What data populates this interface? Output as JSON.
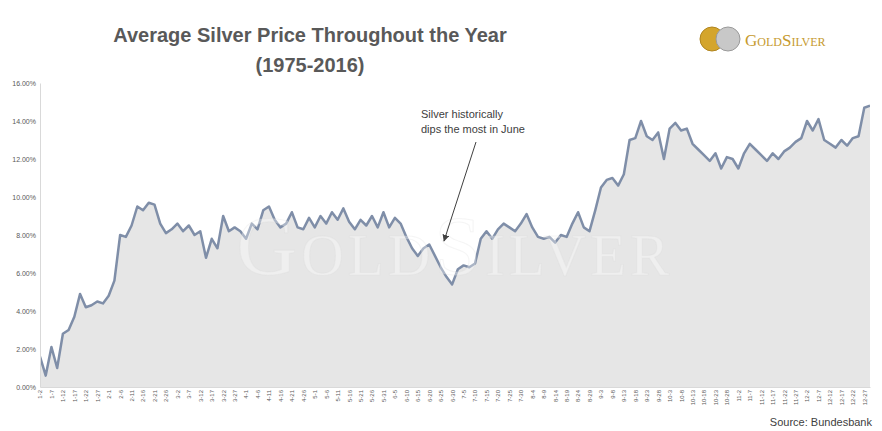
{
  "chart_data": {
    "type": "line",
    "title": "Average Silver Price Throughout the Year",
    "subtitle": "(1975-2016)",
    "annotation": [
      "Silver historically",
      "dips the most in June"
    ],
    "source": "Source: Bundesbank",
    "logo": "GoldSilver",
    "watermark": "GoldSilver",
    "color": "#7f8ea8",
    "grid": false,
    "categories": [
      "1-2",
      null,
      "1-7",
      null,
      "1-12",
      null,
      "1-17",
      null,
      "1-22",
      null,
      "1-27",
      null,
      "2-1",
      null,
      "2-6",
      null,
      "2-11",
      null,
      "2-16",
      null,
      "2-21",
      null,
      "2-26",
      null,
      "3-2",
      null,
      "3-7",
      null,
      "3-12",
      null,
      "3-17",
      null,
      "3-22",
      null,
      "3-27",
      null,
      "4-1",
      null,
      "4-6",
      null,
      "4-11",
      null,
      "4-16",
      null,
      "4-21",
      null,
      "4-26",
      null,
      "5-1",
      null,
      "5-6",
      null,
      "5-11",
      null,
      "5-16",
      null,
      "5-21",
      null,
      "5-26",
      null,
      "5-31",
      null,
      "6-5",
      null,
      "6-10",
      null,
      "6-15",
      null,
      "6-20",
      null,
      "6-25",
      null,
      "6-30",
      null,
      "7-5",
      null,
      "7-10",
      null,
      "7-15",
      null,
      "7-20",
      null,
      "7-25",
      null,
      "7-30",
      null,
      "8-4",
      null,
      "8-9",
      null,
      "8-14",
      null,
      "8-19",
      null,
      "8-24",
      null,
      "8-29",
      null,
      "9-3",
      null,
      "9-8",
      null,
      "9-13",
      null,
      "9-18",
      null,
      "9-23",
      null,
      "9-28",
      null,
      "10-3",
      null,
      "10-8",
      null,
      "10-13",
      null,
      "10-18",
      null,
      "10-23",
      null,
      "10-28",
      null,
      "11-2",
      null,
      "11-7",
      null,
      "11-12",
      null,
      "11-17",
      null,
      "11-22",
      null,
      "11-27",
      null,
      "12-2",
      null,
      "12-7",
      null,
      "12-12",
      null,
      "12-17",
      null,
      "12-22",
      null,
      "12-27",
      null
    ],
    "values": [
      1.6,
      0.6,
      2.1,
      1.0,
      2.8,
      3.0,
      3.7,
      4.9,
      4.2,
      4.3,
      4.5,
      4.4,
      4.8,
      5.6,
      8.0,
      7.9,
      8.5,
      9.5,
      9.3,
      9.7,
      9.6,
      8.6,
      8.1,
      8.3,
      8.6,
      8.2,
      8.5,
      8.0,
      8.2,
      6.8,
      7.8,
      7.3,
      9.0,
      8.2,
      8.4,
      8.2,
      7.8,
      8.6,
      8.3,
      9.3,
      9.5,
      8.8,
      8.4,
      8.6,
      9.2,
      8.4,
      8.3,
      8.9,
      8.4,
      9.0,
      8.6,
      9.2,
      8.8,
      9.4,
      8.7,
      8.3,
      8.8,
      8.5,
      9.0,
      8.4,
      9.2,
      8.4,
      8.9,
      8.6,
      7.9,
      7.3,
      6.9,
      7.3,
      7.5,
      6.9,
      6.3,
      5.8,
      5.4,
      6.2,
      6.4,
      6.3,
      6.5,
      7.8,
      8.2,
      7.8,
      8.3,
      8.6,
      8.4,
      8.2,
      8.6,
      9.1,
      8.4,
      7.9,
      7.8,
      7.9,
      7.6,
      8.0,
      7.9,
      8.6,
      9.2,
      8.4,
      8.2,
      9.3,
      10.5,
      10.9,
      11.0,
      10.6,
      11.2,
      13.0,
      13.1,
      14.0,
      13.2,
      13.0,
      13.4,
      12.0,
      13.6,
      13.9,
      13.5,
      13.6,
      12.8,
      12.5,
      12.2,
      11.9,
      12.3,
      11.5,
      12.1,
      12.0,
      11.5,
      12.3,
      12.8,
      12.5,
      12.2,
      11.9,
      12.3,
      12.0,
      12.4,
      12.6,
      12.9,
      13.1,
      14.0,
      13.5,
      14.1,
      13.0,
      12.8,
      12.6,
      13.0,
      12.7,
      13.1,
      13.2,
      14.7,
      14.8
    ],
    "ylim": [
      0,
      16
    ],
    "yticks": [
      {
        "value": 0,
        "label": "0.00%"
      },
      {
        "value": 2,
        "label": "2.00%"
      },
      {
        "value": 4,
        "label": "4.00%"
      },
      {
        "value": 6,
        "label": "6.00%"
      },
      {
        "value": 8,
        "label": "8.00%"
      },
      {
        "value": 10,
        "label": "10.00%"
      },
      {
        "value": 12,
        "label": "12.00%"
      },
      {
        "value": 14,
        "label": "14.00%"
      },
      {
        "value": 16,
        "label": "16.00%"
      }
    ]
  }
}
